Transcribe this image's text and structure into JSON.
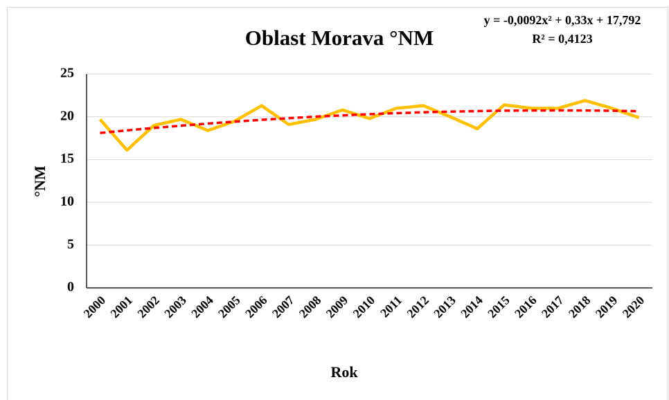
{
  "chart_data": {
    "type": "line",
    "title": "Oblast Morava °NM",
    "categories": [
      "2000",
      "2001",
      "2002",
      "2003",
      "2004",
      "2005",
      "2006",
      "2007",
      "2008",
      "2009",
      "2010",
      "2011",
      "2012",
      "2013",
      "2014",
      "2015",
      "2016",
      "2017",
      "2018",
      "2019",
      "2020"
    ],
    "values": [
      19.7,
      16.1,
      19.0,
      19.7,
      18.4,
      19.5,
      21.3,
      19.1,
      19.7,
      20.8,
      19.8,
      21.0,
      21.3,
      20.0,
      18.6,
      21.4,
      21.0,
      21.0,
      21.9,
      21.0,
      19.9
    ],
    "color": "#ffc000",
    "trendline": {
      "equation": "y = -0,0092x² + 0,33x + 17,792",
      "r2": "R² = 0,4123",
      "color": "#ff0000",
      "values": [
        18.11,
        18.42,
        18.7,
        18.96,
        19.21,
        19.44,
        19.65,
        19.84,
        20.02,
        20.17,
        20.31,
        20.43,
        20.53,
        20.61,
        20.67,
        20.72,
        20.74,
        20.75,
        20.74,
        20.71,
        20.66
      ]
    },
    "xlabel": "Rok",
    "ylabel": "°NM",
    "ylim": [
      0,
      25
    ],
    "yticks": [
      0,
      5,
      10,
      15,
      20,
      25
    ],
    "grid": true
  }
}
